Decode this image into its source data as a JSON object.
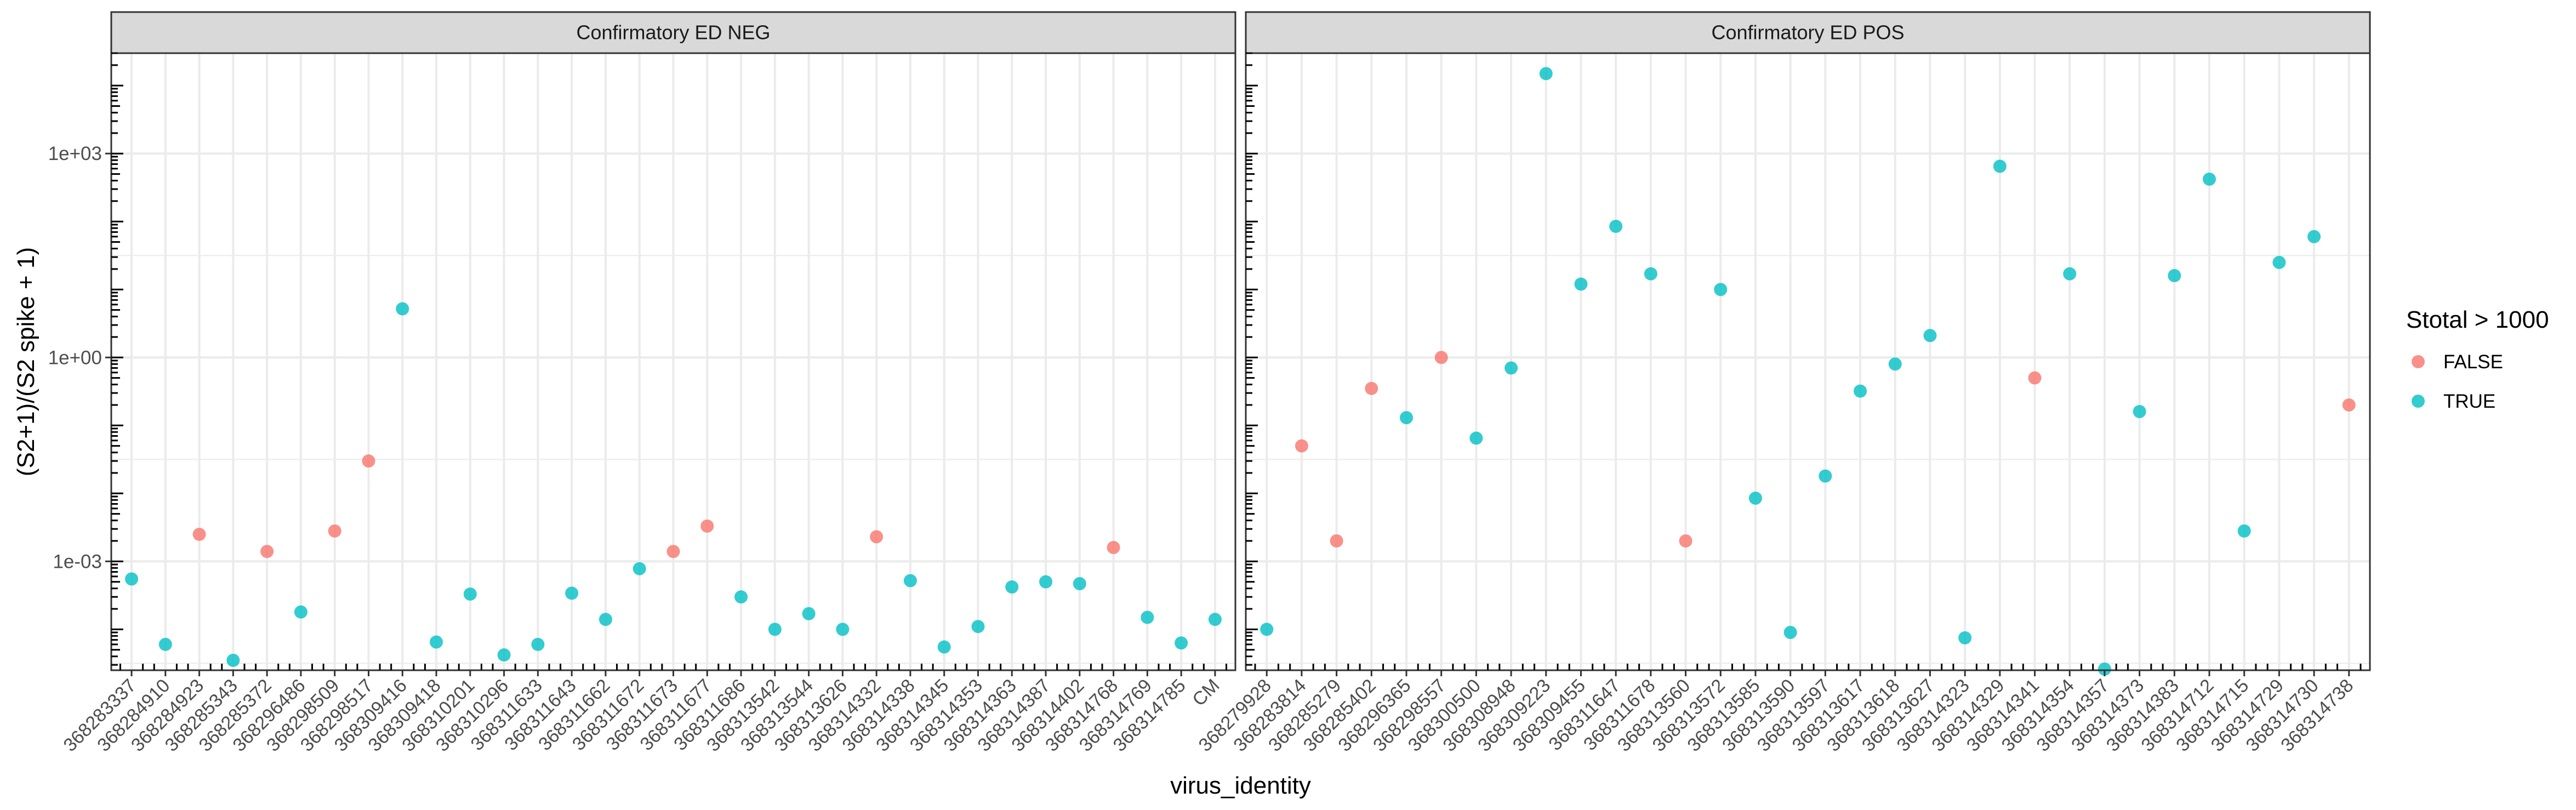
{
  "chart_data": {
    "type": "scatter",
    "ylabel": "(S2+1)/(S2 spike + 1)",
    "xlabel": "virus_identity",
    "y_scale": "log10",
    "ylim": [
      2.5e-05,
      30000
    ],
    "y_ticks": [
      0.001,
      1,
      1000
    ],
    "y_tick_labels": [
      "1e-03",
      "1e+00",
      "1e+03"
    ],
    "grid": true,
    "legend": {
      "title": "Stotal > 1000",
      "placement": "right",
      "entries": [
        {
          "label": "FALSE",
          "color": "#F8766D"
        },
        {
          "label": "TRUE",
          "color": "#00BFC4"
        }
      ]
    },
    "panels": [
      {
        "strip": "Confirmatory ED NEG",
        "categories": [
          "368283337",
          "368284910",
          "368284923",
          "368285343",
          "368285372",
          "368296486",
          "368298509",
          "368298517",
          "368309416",
          "368309418",
          "368310201",
          "368310296",
          "368311633",
          "368311643",
          "368311662",
          "368311672",
          "368311673",
          "368311677",
          "368311686",
          "368313542",
          "368313544",
          "368313626",
          "368314332",
          "368314338",
          "368314345",
          "368314353",
          "368314363",
          "368314387",
          "368314402",
          "368314768",
          "368314769",
          "368314785",
          "CM"
        ],
        "points": [
          {
            "x": "368283337",
            "y": 0.00055,
            "stotal_gt_1000": "TRUE"
          },
          {
            "x": "368284910",
            "y": 6e-05,
            "stotal_gt_1000": "TRUE"
          },
          {
            "x": "368284923",
            "y": 0.0025,
            "stotal_gt_1000": "FALSE"
          },
          {
            "x": "368285343",
            "y": 3.5e-05,
            "stotal_gt_1000": "TRUE"
          },
          {
            "x": "368285372",
            "y": 0.0014,
            "stotal_gt_1000": "FALSE"
          },
          {
            "x": "368296486",
            "y": 0.00018,
            "stotal_gt_1000": "TRUE"
          },
          {
            "x": "368298509",
            "y": 0.0028,
            "stotal_gt_1000": "FALSE"
          },
          {
            "x": "368298517",
            "y": 0.03,
            "stotal_gt_1000": "FALSE"
          },
          {
            "x": "368309416",
            "y": 5.2,
            "stotal_gt_1000": "TRUE"
          },
          {
            "x": "368309418",
            "y": 6.5e-05,
            "stotal_gt_1000": "TRUE"
          },
          {
            "x": "368310201",
            "y": 0.00033,
            "stotal_gt_1000": "TRUE"
          },
          {
            "x": "368310296",
            "y": 4.2e-05,
            "stotal_gt_1000": "TRUE"
          },
          {
            "x": "368311633",
            "y": 6e-05,
            "stotal_gt_1000": "TRUE"
          },
          {
            "x": "368311643",
            "y": 0.00034,
            "stotal_gt_1000": "TRUE"
          },
          {
            "x": "368311662",
            "y": 0.00014,
            "stotal_gt_1000": "TRUE"
          },
          {
            "x": "368311672",
            "y": 0.00078,
            "stotal_gt_1000": "TRUE"
          },
          {
            "x": "368311673",
            "y": 0.0014,
            "stotal_gt_1000": "FALSE"
          },
          {
            "x": "368311677",
            "y": 0.0033,
            "stotal_gt_1000": "FALSE"
          },
          {
            "x": "368311686",
            "y": 0.0003,
            "stotal_gt_1000": "TRUE"
          },
          {
            "x": "368313542",
            "y": 0.0001,
            "stotal_gt_1000": "TRUE"
          },
          {
            "x": "368313544",
            "y": 0.00017,
            "stotal_gt_1000": "TRUE"
          },
          {
            "x": "368313626",
            "y": 0.0001,
            "stotal_gt_1000": "TRUE"
          },
          {
            "x": "368314332",
            "y": 0.0023,
            "stotal_gt_1000": "FALSE"
          },
          {
            "x": "368314338",
            "y": 0.00052,
            "stotal_gt_1000": "TRUE"
          },
          {
            "x": "368314345",
            "y": 5.5e-05,
            "stotal_gt_1000": "TRUE"
          },
          {
            "x": "368314353",
            "y": 0.00011,
            "stotal_gt_1000": "TRUE"
          },
          {
            "x": "368314363",
            "y": 0.00042,
            "stotal_gt_1000": "TRUE"
          },
          {
            "x": "368314387",
            "y": 0.0005,
            "stotal_gt_1000": "TRUE"
          },
          {
            "x": "368314402",
            "y": 0.00047,
            "stotal_gt_1000": "TRUE"
          },
          {
            "x": "368314768",
            "y": 0.0016,
            "stotal_gt_1000": "FALSE"
          },
          {
            "x": "368314769",
            "y": 0.00015,
            "stotal_gt_1000": "TRUE"
          },
          {
            "x": "368314785",
            "y": 6.3e-05,
            "stotal_gt_1000": "TRUE"
          },
          {
            "x": "CM",
            "y": 0.00014,
            "stotal_gt_1000": "TRUE"
          }
        ]
      },
      {
        "strip": "Confirmatory ED POS",
        "categories": [
          "368279928",
          "368283814",
          "368285279",
          "368285402",
          "368296365",
          "368298557",
          "368300500",
          "368308948",
          "368309223",
          "368309455",
          "368311647",
          "368311678",
          "368313560",
          "368313572",
          "368313585",
          "368313590",
          "368313597",
          "368313617",
          "368313618",
          "368313627",
          "368314323",
          "368314329",
          "368314341",
          "368314354",
          "368314357",
          "368314373",
          "368314383",
          "368314712",
          "368314715",
          "368314729",
          "368314730",
          "368314738"
        ],
        "points": [
          {
            "x": "368279928",
            "y": 0.0001,
            "stotal_gt_1000": "TRUE"
          },
          {
            "x": "368283814",
            "y": 0.05,
            "stotal_gt_1000": "FALSE"
          },
          {
            "x": "368285279",
            "y": 0.002,
            "stotal_gt_1000": "FALSE"
          },
          {
            "x": "368285402",
            "y": 0.35,
            "stotal_gt_1000": "FALSE"
          },
          {
            "x": "368296365",
            "y": 0.13,
            "stotal_gt_1000": "TRUE"
          },
          {
            "x": "368298557",
            "y": 1.0,
            "stotal_gt_1000": "FALSE"
          },
          {
            "x": "368300500",
            "y": 0.065,
            "stotal_gt_1000": "TRUE"
          },
          {
            "x": "368308948",
            "y": 0.7,
            "stotal_gt_1000": "TRUE"
          },
          {
            "x": "368309223",
            "y": 15000,
            "stotal_gt_1000": "TRUE"
          },
          {
            "x": "368309455",
            "y": 12,
            "stotal_gt_1000": "TRUE"
          },
          {
            "x": "368311647",
            "y": 85,
            "stotal_gt_1000": "TRUE"
          },
          {
            "x": "368311678",
            "y": 17,
            "stotal_gt_1000": "TRUE"
          },
          {
            "x": "368313560",
            "y": 0.002,
            "stotal_gt_1000": "FALSE"
          },
          {
            "x": "368313572",
            "y": 10,
            "stotal_gt_1000": "TRUE"
          },
          {
            "x": "368313585",
            "y": 0.0085,
            "stotal_gt_1000": "TRUE"
          },
          {
            "x": "368313590",
            "y": 9e-05,
            "stotal_gt_1000": "TRUE"
          },
          {
            "x": "368313597",
            "y": 0.018,
            "stotal_gt_1000": "TRUE"
          },
          {
            "x": "368313617",
            "y": 0.32,
            "stotal_gt_1000": "TRUE"
          },
          {
            "x": "368313618",
            "y": 0.8,
            "stotal_gt_1000": "TRUE"
          },
          {
            "x": "368313627",
            "y": 2.1,
            "stotal_gt_1000": "TRUE"
          },
          {
            "x": "368314323",
            "y": 7.5e-05,
            "stotal_gt_1000": "TRUE"
          },
          {
            "x": "368314329",
            "y": 650,
            "stotal_gt_1000": "TRUE"
          },
          {
            "x": "368314341",
            "y": 0.5,
            "stotal_gt_1000": "FALSE"
          },
          {
            "x": "368314354",
            "y": 17,
            "stotal_gt_1000": "TRUE"
          },
          {
            "x": "368314357",
            "y": 2.6e-05,
            "stotal_gt_1000": "TRUE"
          },
          {
            "x": "368314373",
            "y": 0.16,
            "stotal_gt_1000": "TRUE"
          },
          {
            "x": "368314383",
            "y": 16,
            "stotal_gt_1000": "TRUE"
          },
          {
            "x": "368314712",
            "y": 420,
            "stotal_gt_1000": "TRUE"
          },
          {
            "x": "368314715",
            "y": 0.0028,
            "stotal_gt_1000": "TRUE"
          },
          {
            "x": "368314729",
            "y": 25,
            "stotal_gt_1000": "TRUE"
          },
          {
            "x": "368314730",
            "y": 60,
            "stotal_gt_1000": "TRUE"
          },
          {
            "x": "368314738",
            "y": 0.2,
            "stotal_gt_1000": "FALSE"
          }
        ]
      }
    ]
  }
}
